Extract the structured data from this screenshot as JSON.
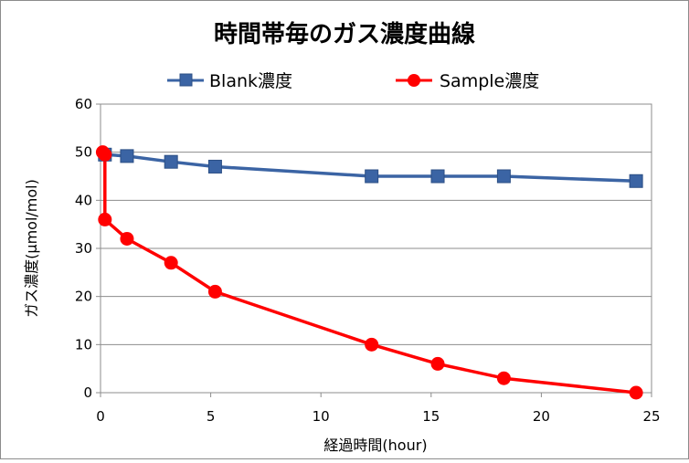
{
  "chart_data": {
    "type": "line",
    "title": "時間帯毎のガス濃度曲線",
    "xlabel": "経過時間(hour)",
    "ylabel": "ガス濃度(μmol/mol)",
    "xlim": [
      0,
      25
    ],
    "ylim": [
      0,
      60
    ],
    "x_ticks": [
      "0",
      "5",
      "10",
      "15",
      "20",
      "25"
    ],
    "y_ticks": [
      "0",
      "10",
      "20",
      "30",
      "40",
      "50",
      "60"
    ],
    "grid": true,
    "legend_position": "top",
    "series": [
      {
        "name": "Blank濃度",
        "color": "#3b64a4",
        "marker": "square",
        "points": [
          [
            0.2,
            49.5
          ],
          [
            1.2,
            49.2
          ],
          [
            3.2,
            48
          ],
          [
            5.2,
            47
          ],
          [
            12.3,
            45
          ],
          [
            15.3,
            45
          ],
          [
            18.3,
            45
          ],
          [
            24.3,
            44
          ]
        ]
      },
      {
        "name": "Sample濃度",
        "color": "#ff0000",
        "marker": "circle",
        "points": [
          [
            0.1,
            50
          ],
          [
            0.2,
            49.5
          ],
          [
            0.2,
            36
          ],
          [
            1.2,
            32
          ],
          [
            3.2,
            27
          ],
          [
            5.2,
            21
          ],
          [
            12.3,
            10
          ],
          [
            15.3,
            6
          ],
          [
            18.3,
            3
          ],
          [
            24.3,
            0
          ]
        ]
      }
    ]
  }
}
